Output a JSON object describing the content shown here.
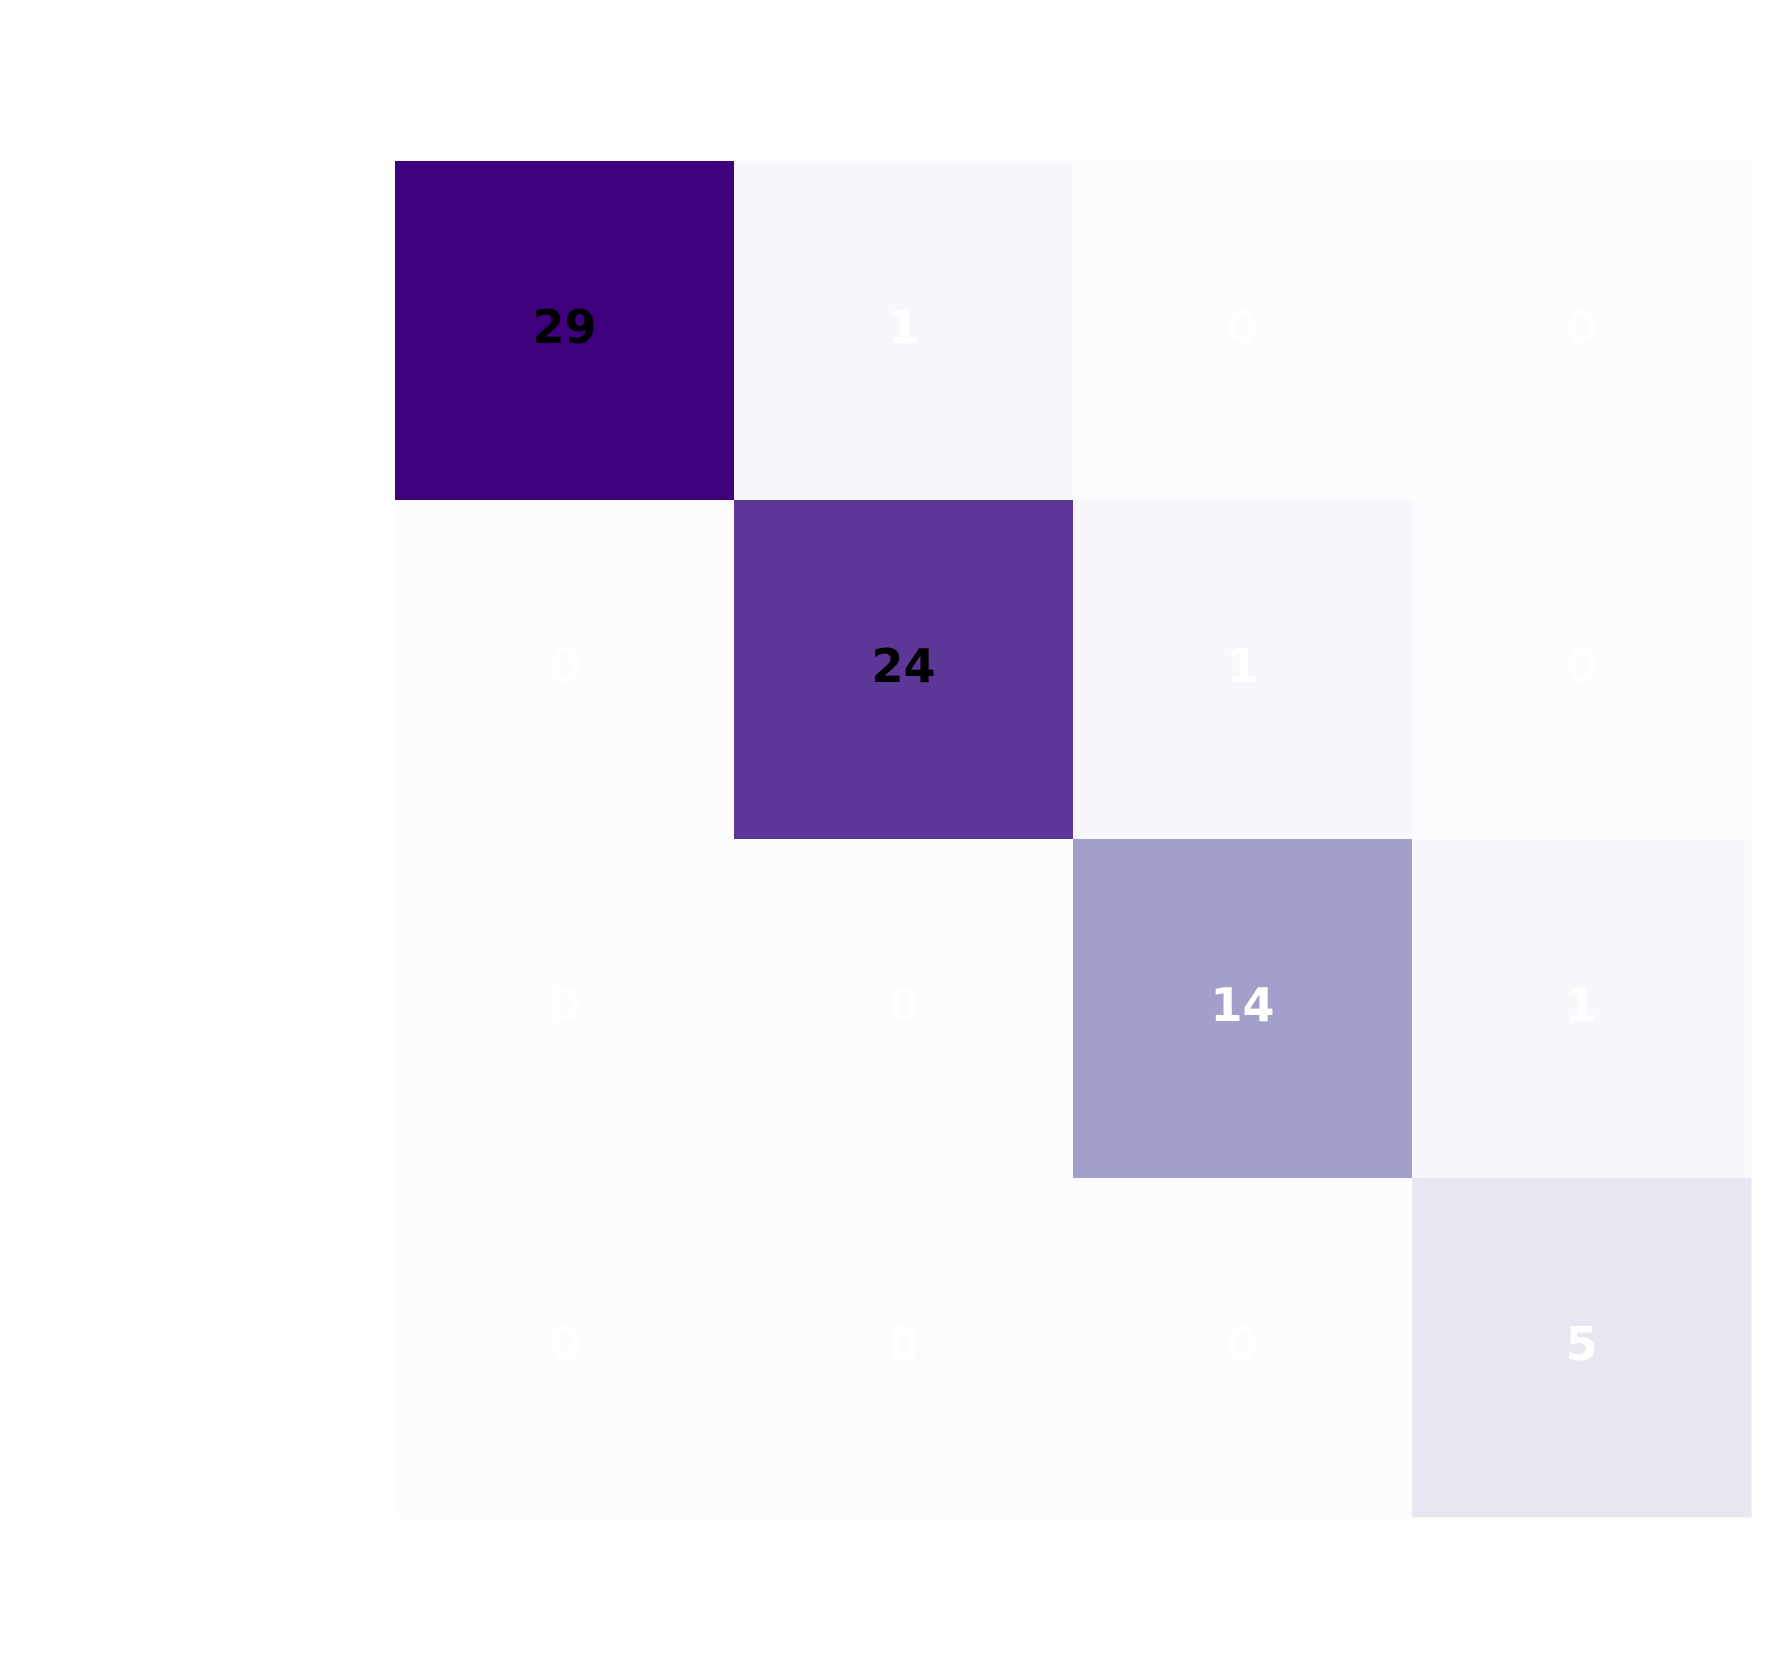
{
  "chart_data": {
    "type": "heatmap",
    "values": [
      [
        29,
        1,
        0,
        0
      ],
      [
        0,
        24,
        1,
        0
      ],
      [
        0,
        0,
        14,
        1
      ],
      [
        0,
        0,
        0,
        5
      ]
    ],
    "colormap": "Purples"
  }
}
